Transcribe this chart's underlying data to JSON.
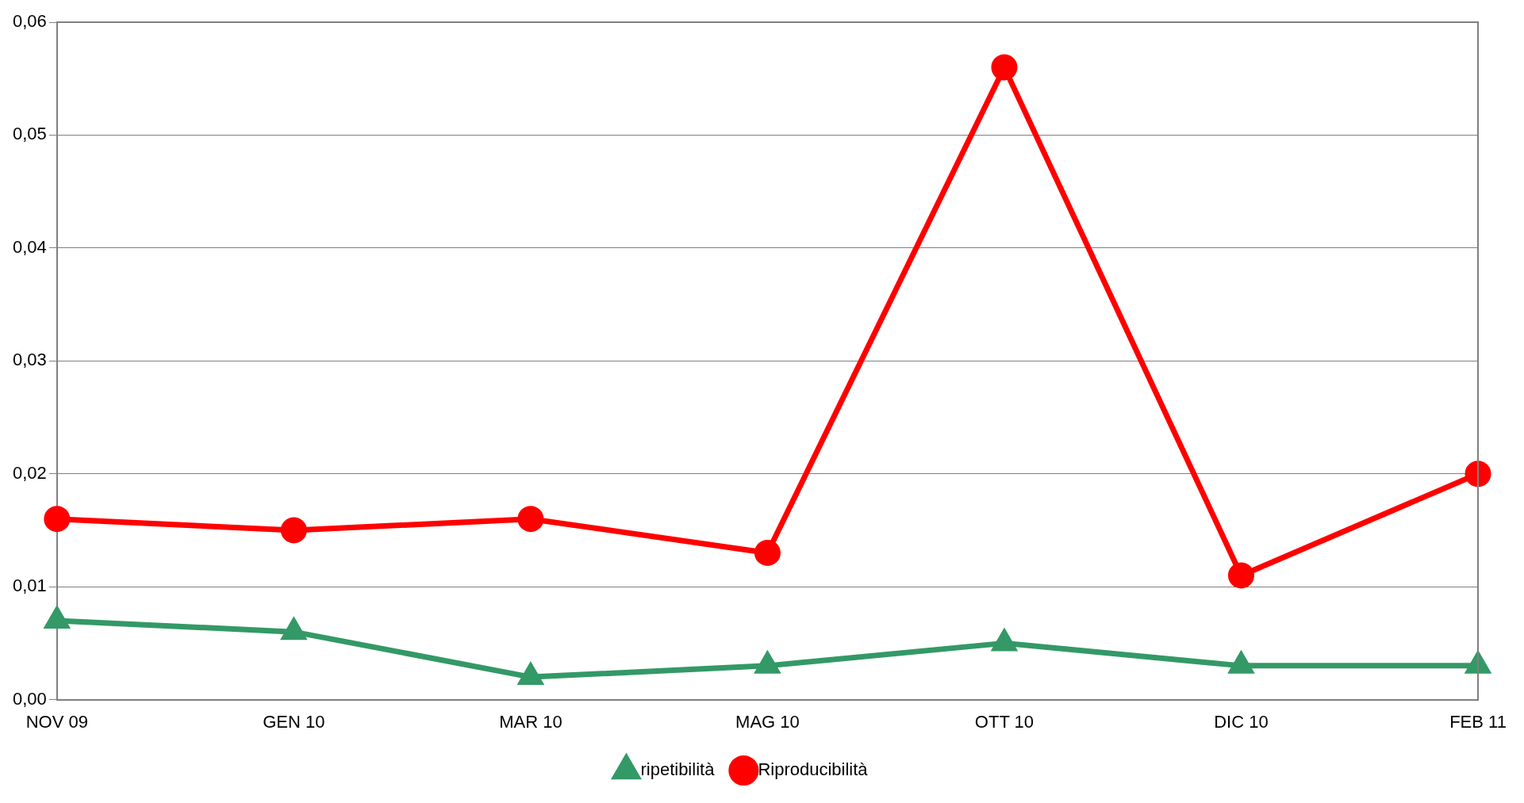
{
  "chart_data": {
    "type": "line",
    "categories": [
      "NOV 09",
      "GEN 10",
      "MAR 10",
      "MAG 10",
      "OTT 10",
      "DIC 10",
      "FEB 11"
    ],
    "series": [
      {
        "name": "ripetibilità",
        "color": "#339966",
        "marker": "triangle",
        "values": [
          0.007,
          0.006,
          0.002,
          0.003,
          0.005,
          0.003,
          0.003
        ]
      },
      {
        "name": "Riproducibilità",
        "color": "#ff0000",
        "marker": "circle",
        "values": [
          0.016,
          0.015,
          0.016,
          0.013,
          0.056,
          0.011,
          0.02
        ]
      }
    ],
    "ylim": [
      0,
      0.06
    ],
    "yticks": [
      {
        "value": 0,
        "label": "0,00"
      },
      {
        "value": 0.01,
        "label": "0,01"
      },
      {
        "value": 0.02,
        "label": "0,02"
      },
      {
        "value": 0.03,
        "label": "0,03"
      },
      {
        "value": 0.04,
        "label": "0,04"
      },
      {
        "value": 0.05,
        "label": "0,05"
      },
      {
        "value": 0.06,
        "label": "0,06"
      }
    ],
    "grid": "y",
    "legend": "bottom",
    "line_style": "solid"
  }
}
